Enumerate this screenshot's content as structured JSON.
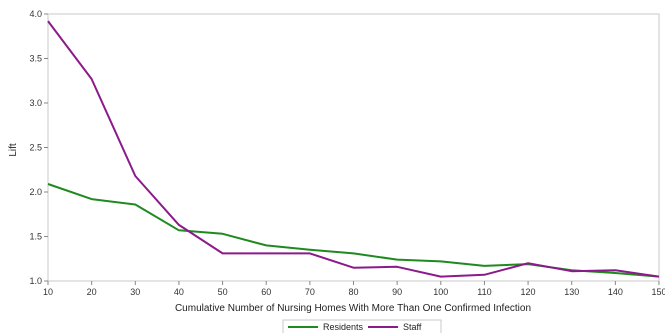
{
  "chart_data": {
    "type": "line",
    "xlabel": "Cumulative Number of Nursing Homes With More Than One Confirmed Infection",
    "ylabel": "Lift",
    "xlim": [
      10,
      150
    ],
    "ylim": [
      1.0,
      4.0
    ],
    "x_ticks": [
      "10",
      "20",
      "30",
      "40",
      "50",
      "60",
      "70",
      "80",
      "90",
      "100",
      "110",
      "120",
      "130",
      "140",
      "150"
    ],
    "y_ticks": [
      "1.0",
      "1.5",
      "2.0",
      "2.5",
      "3.0",
      "3.5",
      "4.0"
    ],
    "grid": false,
    "legend_position": "bottom-center",
    "x": [
      10,
      20,
      30,
      40,
      50,
      60,
      70,
      80,
      90,
      100,
      110,
      120,
      130,
      140,
      150
    ],
    "series": [
      {
        "name": "Residents",
        "color": "#1f8a1f",
        "values": [
          2.09,
          1.92,
          1.86,
          1.57,
          1.53,
          1.4,
          1.35,
          1.31,
          1.24,
          1.22,
          1.17,
          1.19,
          1.12,
          1.09,
          1.05
        ]
      },
      {
        "name": "Staff",
        "color": "#8b1a8b",
        "values": [
          3.92,
          3.27,
          2.18,
          1.63,
          1.31,
          1.31,
          1.31,
          1.15,
          1.16,
          1.05,
          1.07,
          1.2,
          1.11,
          1.12,
          1.05
        ]
      }
    ]
  }
}
